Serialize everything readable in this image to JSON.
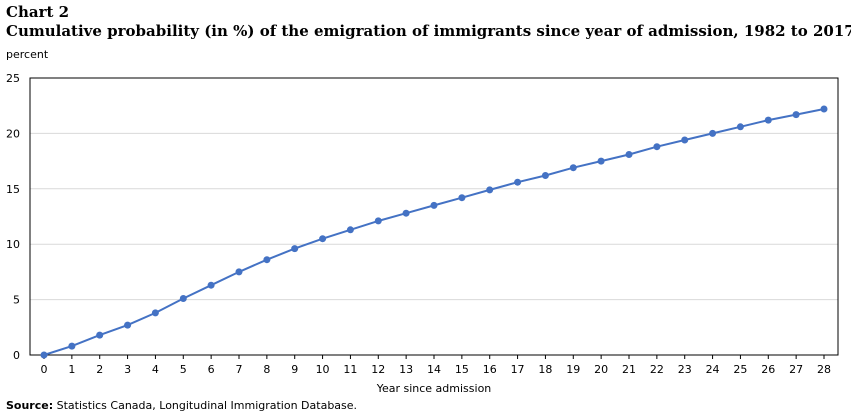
{
  "header": {
    "chart_number": "Chart 2",
    "title": "Cumulative probability (in %) of the emigration of immigrants since year of admission, 1982 to 2017",
    "unit": "percent"
  },
  "footer": {
    "source_label": "Source:",
    "source_text": " Statistics Canada, Longitudinal Immigration Database."
  },
  "chart_data": {
    "type": "line",
    "title": "Cumulative probability (in %) of the emigration of immigrants since year of admission, 1982 to 2017",
    "xlabel": "Year since admission",
    "ylabel": "percent",
    "x": [
      0,
      1,
      2,
      3,
      4,
      5,
      6,
      7,
      8,
      9,
      10,
      11,
      12,
      13,
      14,
      15,
      16,
      17,
      18,
      19,
      20,
      21,
      22,
      23,
      24,
      25,
      26,
      27,
      28
    ],
    "series": [
      {
        "values": [
          0,
          0.8,
          1.8,
          2.7,
          3.8,
          5.1,
          6.3,
          7.5,
          8.6,
          9.6,
          10.5,
          11.3,
          12.1,
          12.8,
          13.5,
          14.2,
          14.9,
          15.6,
          16.2,
          16.9,
          17.5,
          18.1,
          18.8,
          19.4,
          20.0,
          20.6,
          21.2,
          21.7,
          22.2
        ],
        "color": "#4472c4"
      }
    ],
    "xlim": [
      0,
      28
    ],
    "ylim": [
      0,
      25
    ],
    "yticks": [
      0,
      5,
      10,
      15,
      20,
      25
    ],
    "grid": true,
    "legend": "none",
    "gridline_color": "#d9d9d9",
    "axis_color": "#000000"
  }
}
